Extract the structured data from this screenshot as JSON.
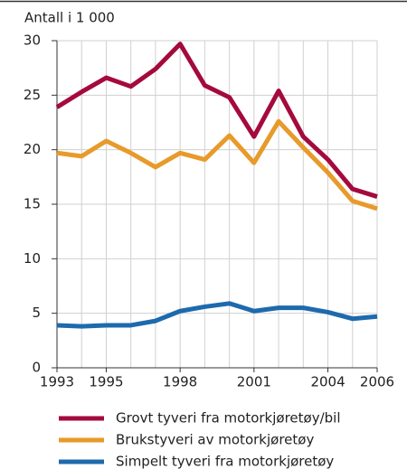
{
  "chart_data": {
    "type": "line",
    "y_axis_label": "Antall i 1 000",
    "x": [
      1993,
      1994,
      1995,
      1996,
      1997,
      1998,
      1999,
      2000,
      2001,
      2002,
      2003,
      2004,
      2005,
      2006
    ],
    "series": [
      {
        "name": "Grovt tyveri fra motorkjøretøy/bil",
        "color": "#a50a3c",
        "values": [
          23.9,
          25.3,
          26.6,
          25.8,
          27.4,
          29.7,
          25.9,
          24.8,
          21.2,
          25.4,
          21.2,
          19.1,
          16.4,
          15.7
        ]
      },
      {
        "name": "Brukstyveri av motorkjøretøy",
        "color": "#e89a2a",
        "values": [
          19.7,
          19.4,
          20.8,
          19.7,
          18.4,
          19.7,
          19.1,
          21.3,
          18.8,
          22.6,
          20.2,
          17.9,
          15.3,
          14.6
        ]
      },
      {
        "name": "Simpelt tyveri fra motorkjøretøy",
        "color": "#1d6aad",
        "values": [
          3.9,
          3.8,
          3.9,
          3.9,
          4.3,
          5.2,
          5.6,
          5.9,
          5.2,
          5.5,
          5.5,
          5.1,
          4.5,
          4.7
        ]
      }
    ],
    "xlim": [
      1993,
      2006
    ],
    "xticks": [
      1993,
      1995,
      1998,
      2001,
      2004,
      2006
    ],
    "ylim": [
      0,
      30
    ],
    "yticks": [
      0,
      5,
      10,
      15,
      20,
      25,
      30
    ],
    "grid": true
  }
}
